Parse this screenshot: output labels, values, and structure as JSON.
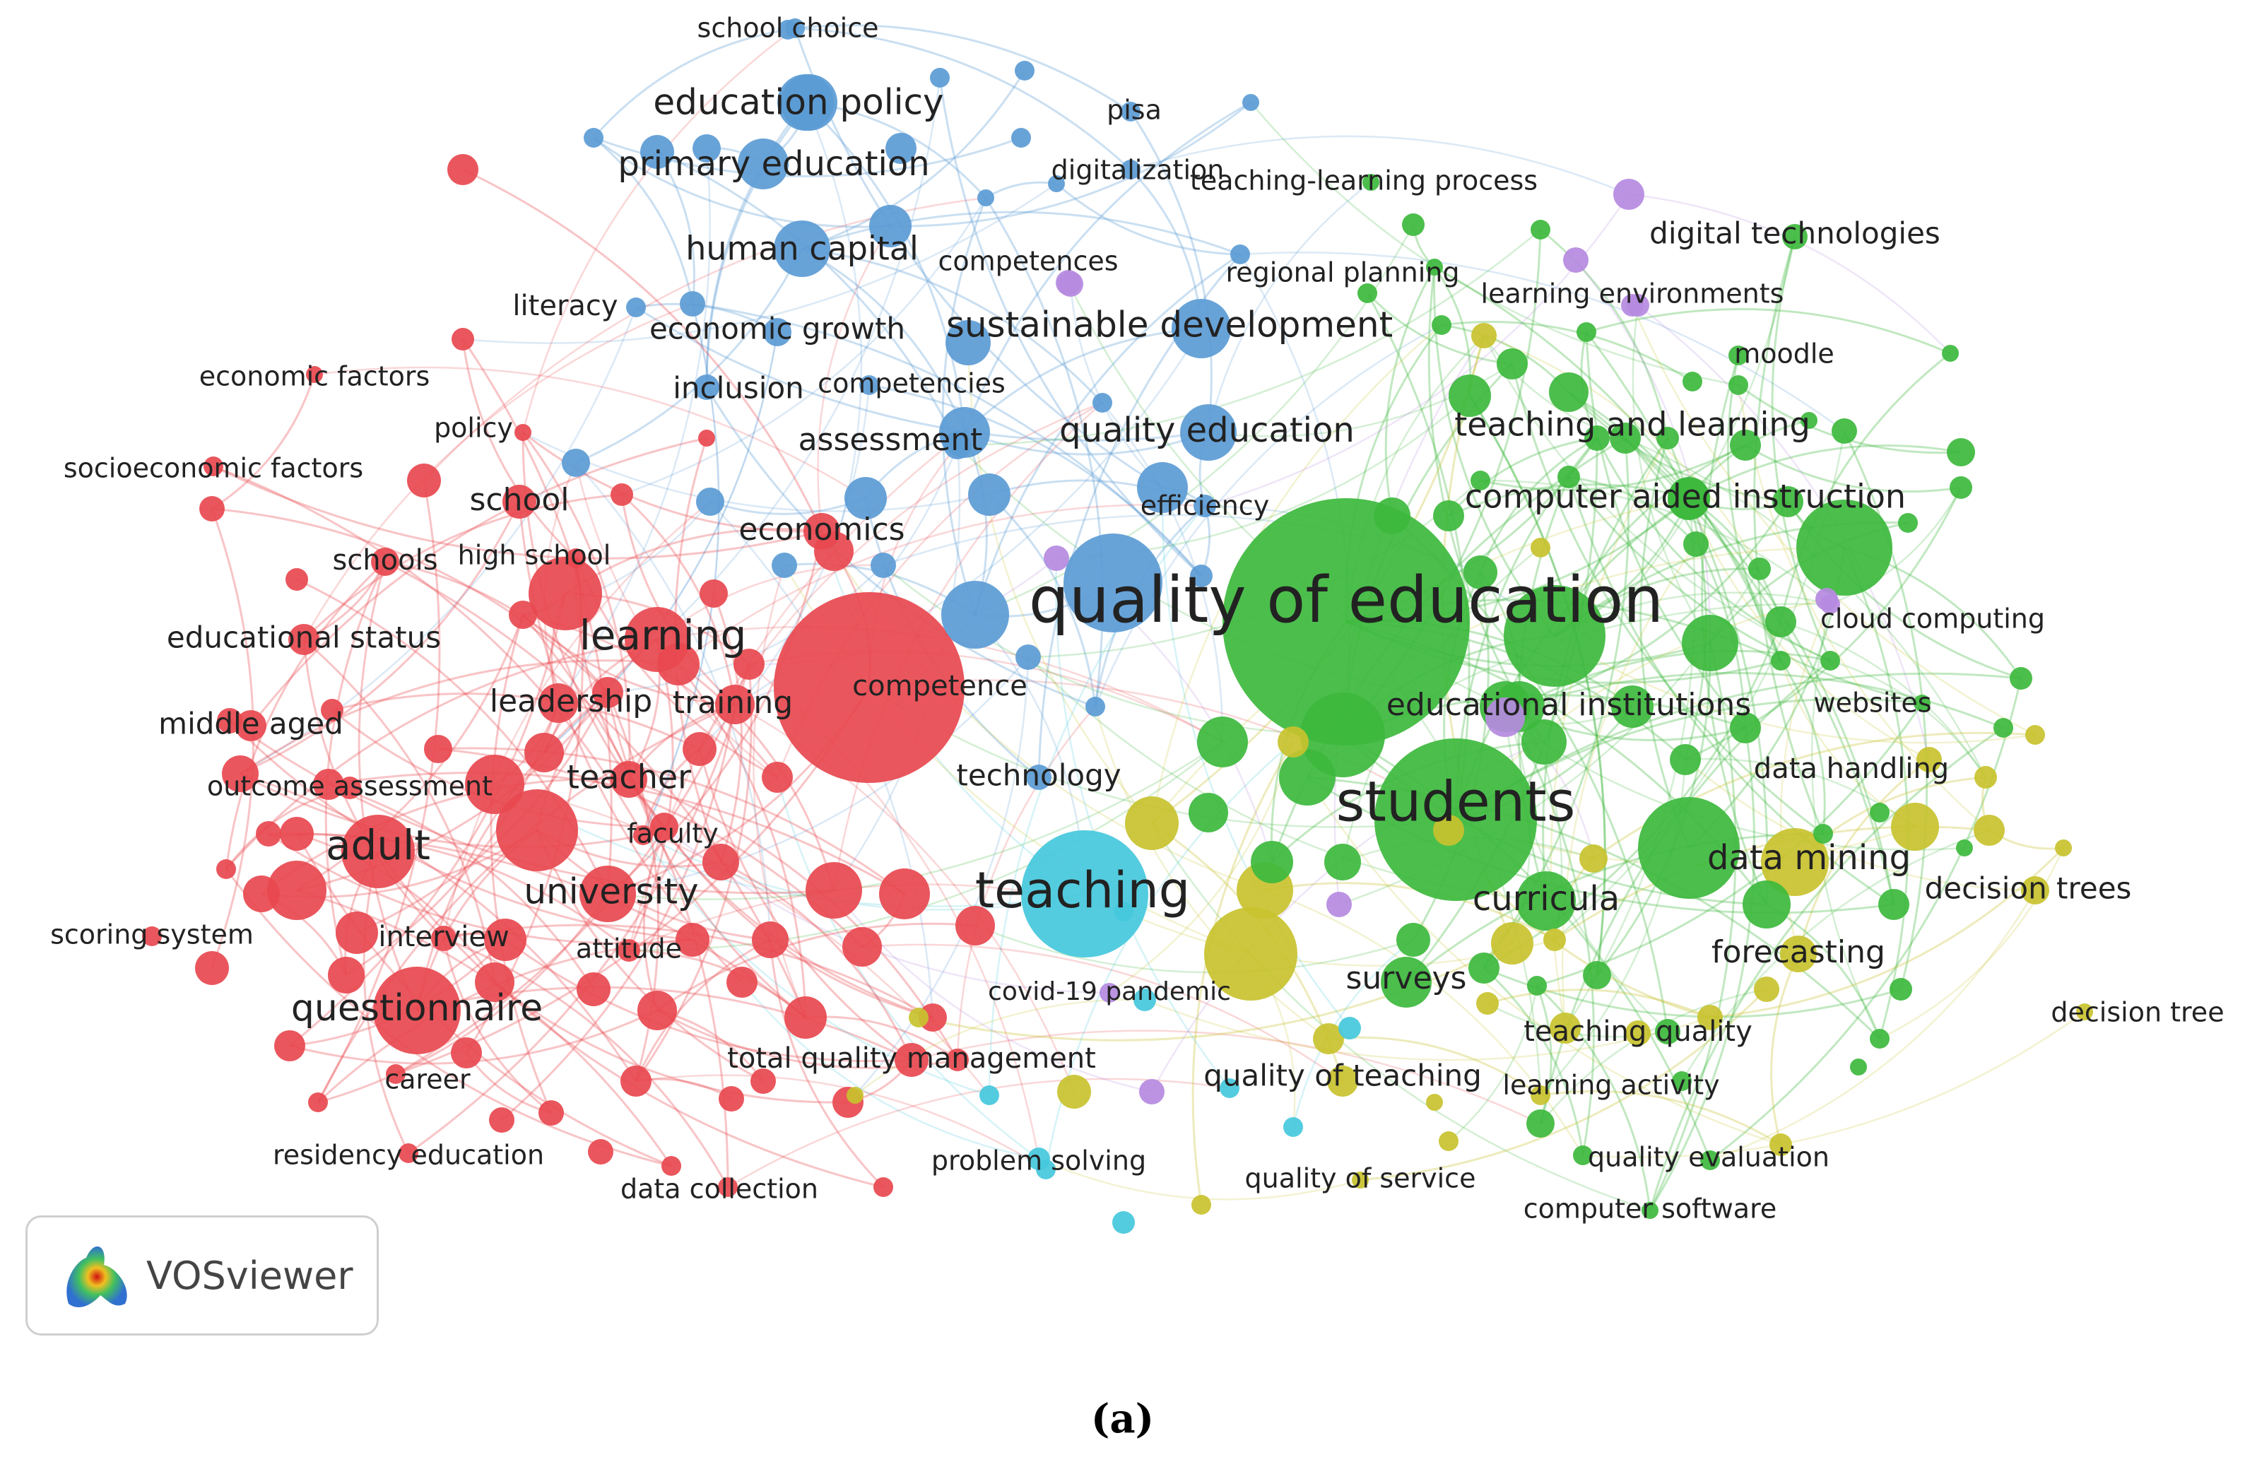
{
  "colors": {
    "red": "#e8484f",
    "blue": "#5b9bd5",
    "green": "#3db83d",
    "yellow": "#c8c22e",
    "cyan": "#45c8dc",
    "purple": "#b58ae0"
  },
  "labels": [
    {
      "text": "school choice",
      "c": "blue"
    },
    {
      "text": "education policy",
      "c": "blue"
    },
    {
      "text": "pisa",
      "c": "blue"
    },
    {
      "text": "primary education",
      "c": "blue"
    },
    {
      "text": "digitalization",
      "c": "blue"
    },
    {
      "text": "teaching-learning process",
      "c": "green"
    },
    {
      "text": "digital technologies",
      "c": "green"
    },
    {
      "text": "human capital",
      "c": "blue"
    },
    {
      "text": "competences",
      "c": "purple"
    },
    {
      "text": "regional planning",
      "c": "green"
    },
    {
      "text": "literacy",
      "c": "blue"
    },
    {
      "text": "learning environments",
      "c": "purple"
    },
    {
      "text": "economic growth",
      "c": "blue"
    },
    {
      "text": "sustainable development",
      "c": "blue"
    },
    {
      "text": "economic factors",
      "c": "red"
    },
    {
      "text": "inclusion",
      "c": "blue"
    },
    {
      "text": "competencies",
      "c": "blue"
    },
    {
      "text": "moodle",
      "c": "green"
    },
    {
      "text": "policy",
      "c": "red"
    },
    {
      "text": "teaching and learning",
      "c": "green"
    },
    {
      "text": "quality education",
      "c": "blue"
    },
    {
      "text": "assessment",
      "c": "blue"
    },
    {
      "text": "socioeconomic factors",
      "c": "red"
    },
    {
      "text": "computer aided instruction",
      "c": "green"
    },
    {
      "text": "school",
      "c": "red"
    },
    {
      "text": "efficiency",
      "c": "blue"
    },
    {
      "text": "economics",
      "c": "red"
    },
    {
      "text": "high school",
      "c": "red"
    },
    {
      "text": "schools",
      "c": "red"
    },
    {
      "text": "quality of education",
      "c": "green"
    },
    {
      "text": "cloud computing",
      "c": "purple"
    },
    {
      "text": "learning",
      "c": "red"
    },
    {
      "text": "educational status",
      "c": "red"
    },
    {
      "text": "competence",
      "c": "red"
    },
    {
      "text": "leadership",
      "c": "red"
    },
    {
      "text": "training",
      "c": "red"
    },
    {
      "text": "educational institutions",
      "c": "green"
    },
    {
      "text": "websites",
      "c": "green"
    },
    {
      "text": "middle aged",
      "c": "red"
    },
    {
      "text": "data handling",
      "c": "yellow"
    },
    {
      "text": "technology",
      "c": "blue"
    },
    {
      "text": "teacher",
      "c": "red"
    },
    {
      "text": "outcome assessment",
      "c": "red"
    },
    {
      "text": "students",
      "c": "green"
    },
    {
      "text": "faculty",
      "c": "red"
    },
    {
      "text": "adult",
      "c": "red"
    },
    {
      "text": "data mining",
      "c": "green"
    },
    {
      "text": "decision trees",
      "c": "yellow"
    },
    {
      "text": "teaching",
      "c": "cyan"
    },
    {
      "text": "university",
      "c": "red"
    },
    {
      "text": "curricula",
      "c": "green"
    },
    {
      "text": "scoring system",
      "c": "red"
    },
    {
      "text": "interview",
      "c": "red"
    },
    {
      "text": "attitude",
      "c": "red"
    },
    {
      "text": "forecasting",
      "c": "yellow"
    },
    {
      "text": "surveys",
      "c": "green"
    },
    {
      "text": "covid-19 pandemic",
      "c": "purple"
    },
    {
      "text": "questionnaire",
      "c": "red"
    },
    {
      "text": "decision tree",
      "c": "yellow"
    },
    {
      "text": "teaching quality",
      "c": "yellow"
    },
    {
      "text": "total quality management",
      "c": "red"
    },
    {
      "text": "quality of teaching",
      "c": "yellow"
    },
    {
      "text": "career",
      "c": "red"
    },
    {
      "text": "learning activity",
      "c": "green"
    },
    {
      "text": "residency education",
      "c": "red"
    },
    {
      "text": "quality evaluation",
      "c": "green"
    },
    {
      "text": "problem solving",
      "c": "cyan"
    },
    {
      "text": "quality of service",
      "c": "yellow"
    },
    {
      "text": "data collection",
      "c": "red"
    },
    {
      "text": "computer software",
      "c": "green"
    }
  ],
  "badge": {
    "text": "VOSviewer",
    "icon": "vosviewer-logo-icon"
  },
  "caption": "(a)"
}
